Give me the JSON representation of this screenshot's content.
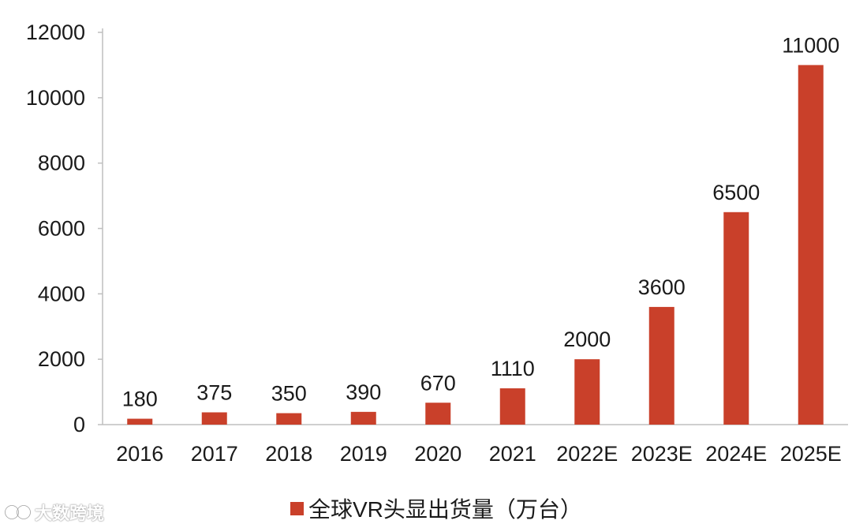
{
  "colors": {
    "bar": "#c9402a",
    "axis": "#bfbfbf",
    "text": "#1a1a1a"
  },
  "chart_data": {
    "type": "bar",
    "categories": [
      "2016",
      "2017",
      "2018",
      "2019",
      "2020",
      "2021",
      "2022E",
      "2023E",
      "2024E",
      "2025E"
    ],
    "series": [
      {
        "name": "全球VR头显出货量（万台）",
        "values": [
          180,
          375,
          350,
          390,
          670,
          1110,
          2000,
          3600,
          6500,
          11000
        ]
      }
    ],
    "data_labels": [
      "180",
      "375",
      "350",
      "390",
      "670",
      "1110",
      "2000",
      "3600",
      "6500",
      "11000"
    ],
    "y_ticks": [
      0,
      2000,
      4000,
      6000,
      8000,
      10000,
      12000
    ],
    "ylim": [
      0,
      12000
    ],
    "title": "",
    "xlabel": "",
    "ylabel": "",
    "grid": false,
    "legend_position": "bottom"
  },
  "legend": {
    "label": "全球VR头显出货量（万台）"
  },
  "watermark": {
    "text": "大数跨境"
  }
}
